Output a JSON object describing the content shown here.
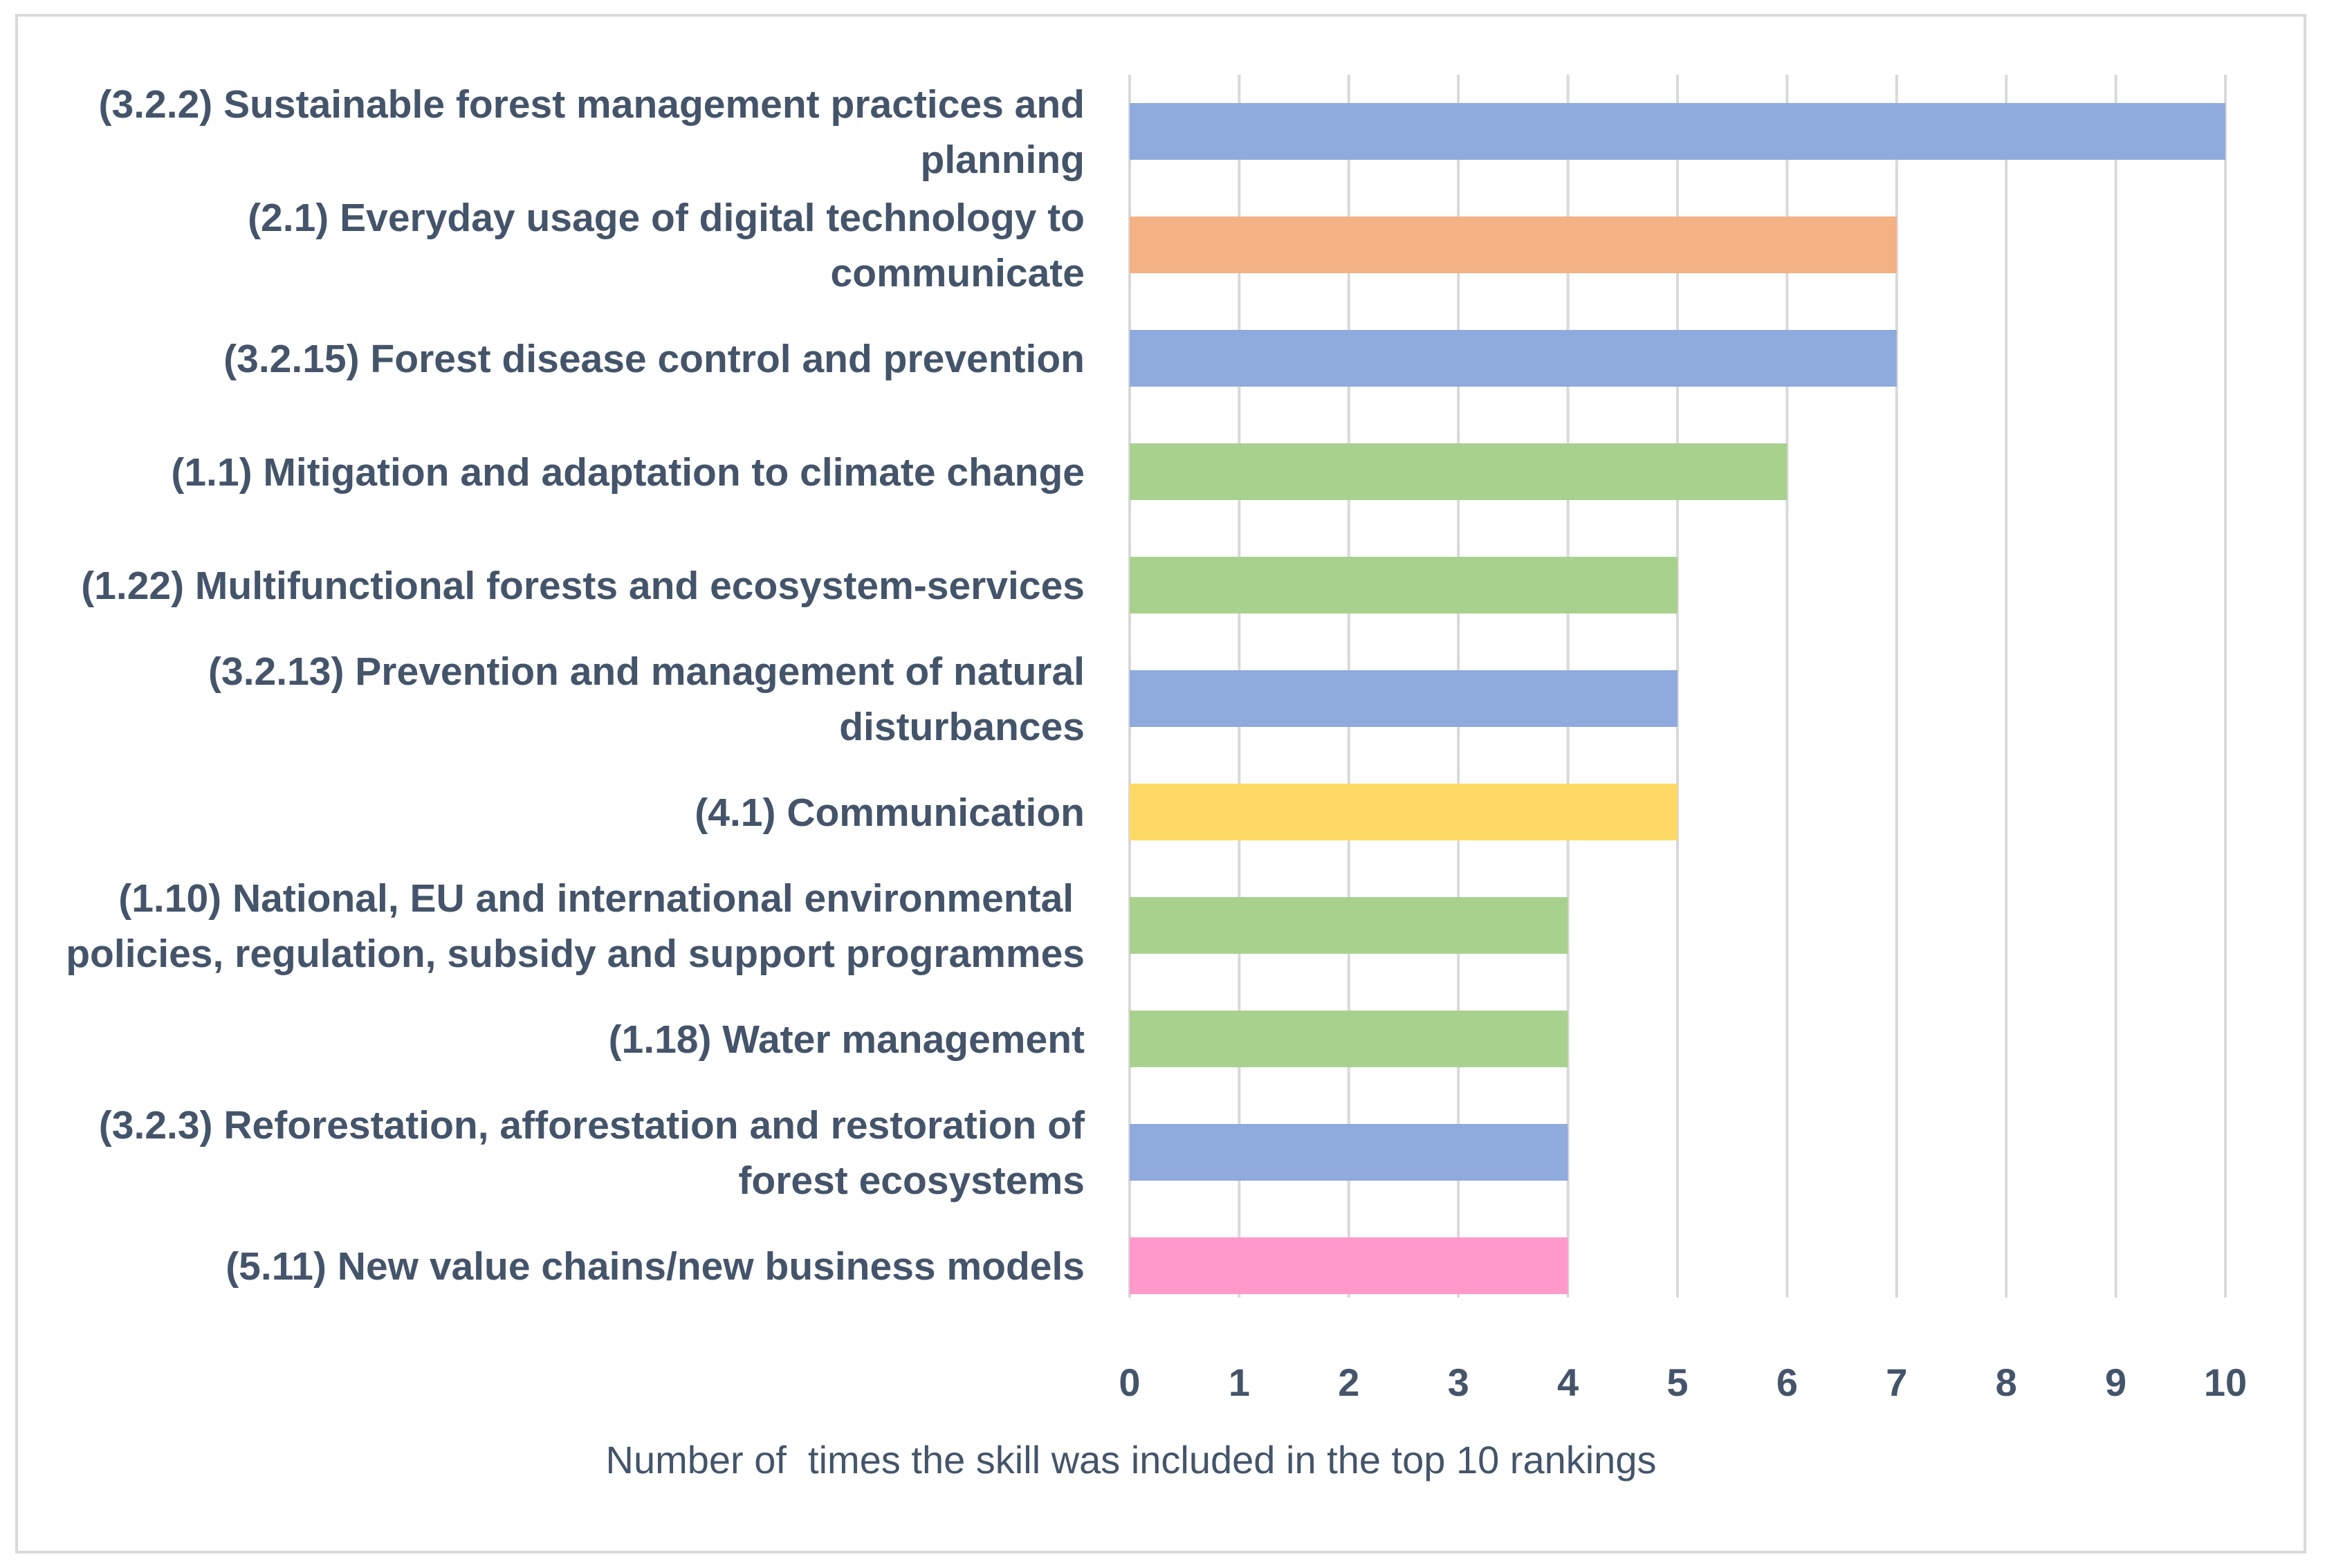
{
  "chart_data": {
    "type": "bar",
    "orientation": "horizontal",
    "title": "",
    "xlabel": "Number of  times the skill was included in the top 10 rankings",
    "ylabel": "",
    "xlim": [
      0,
      10
    ],
    "xticks": [
      "0",
      "1",
      "2",
      "3",
      "4",
      "5",
      "6",
      "7",
      "8",
      "9",
      "10"
    ],
    "grid": "vertical",
    "legend": "none",
    "bars": [
      {
        "lines": [
          "(3.2.2) Sustainable forest management practices and",
          "planning"
        ],
        "value": 10,
        "color": "#8faadc"
      },
      {
        "lines": [
          "(2.1) Everyday usage of digital technology to",
          "communicate"
        ],
        "value": 7,
        "color": "#f4b183"
      },
      {
        "lines": [
          "(3.2.15) Forest disease control and prevention"
        ],
        "value": 7,
        "color": "#8faadc"
      },
      {
        "lines": [
          "(1.1) Mitigation and adaptation to climate change"
        ],
        "value": 6,
        "color": "#a9d18e"
      },
      {
        "lines": [
          "(1.22) Multifunctional forests and ecosystem-services"
        ],
        "value": 5,
        "color": "#a9d18e"
      },
      {
        "lines": [
          "(3.2.13) Prevention and management of natural",
          "disturbances"
        ],
        "value": 5,
        "color": "#8faadc"
      },
      {
        "lines": [
          "(4.1) Communication"
        ],
        "value": 5,
        "color": "#ffd966"
      },
      {
        "lines": [
          "(1.10) National, EU and international environmental ",
          "policies, regulation, subsidy and support programmes"
        ],
        "value": 4,
        "color": "#a9d18e"
      },
      {
        "lines": [
          "(1.18) Water management"
        ],
        "value": 4,
        "color": "#a9d18e"
      },
      {
        "lines": [
          "(3.2.3) Reforestation, afforestation and restoration of",
          "forest ecosystems"
        ],
        "value": 4,
        "color": "#8faadc"
      },
      {
        "lines": [
          "(5.11) New value chains/new business models"
        ],
        "value": 4,
        "color": "#ff99cc"
      }
    ]
  },
  "colors": {
    "gridline": "#d9d9d9",
    "text": "#44546a",
    "border": "#d9d9d9"
  }
}
